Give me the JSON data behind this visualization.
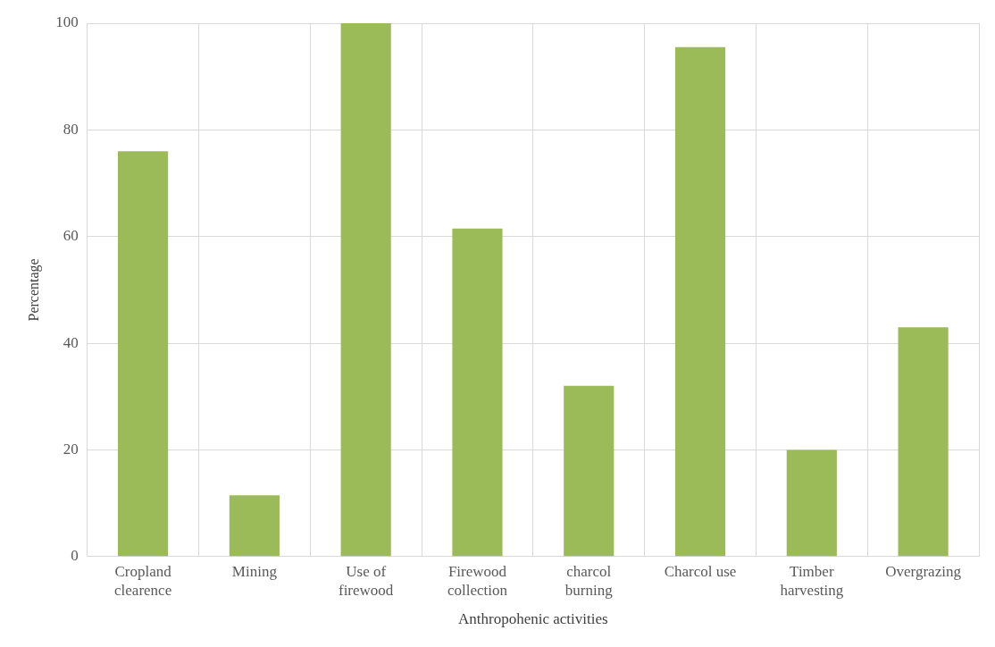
{
  "chart_data": {
    "type": "bar",
    "xlabel": "Anthropohenic activities",
    "ylabel": "Percentage",
    "categories": [
      "Cropland clearence",
      "Mining",
      "Use of firewood",
      "Firewood collection",
      "charcol burning",
      "Charcol use",
      "Timber harvesting",
      "Overgrazing"
    ],
    "values": [
      76,
      11.5,
      100,
      61.5,
      32,
      95.5,
      20,
      43
    ],
    "color": "#9bbb59",
    "ylim": [
      0,
      100
    ],
    "yticks": [
      0,
      20,
      40,
      60,
      80,
      100
    ],
    "grid": true
  }
}
